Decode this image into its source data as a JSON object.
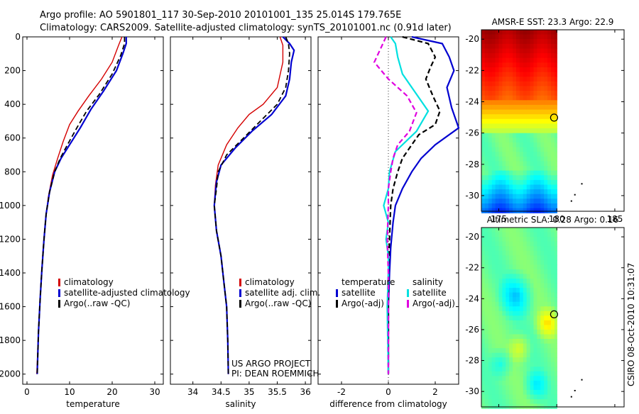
{
  "header": {
    "line1": "Argo profile: AO 5901801_117 30-Sep-2010 20101001_135 25.014S 179.765E",
    "line2": "Climatology: CARS2009. Satellite-adjusted climatology: synTS_20101001.nc (0.91d later)"
  },
  "side_stamp": "CSIRO 08-Oct-2010 10:31:07",
  "project": {
    "line1": "US ARGO PROJECT",
    "line2": "PI: DEAN ROEMMICH"
  },
  "colors": {
    "clim": "#d40000",
    "sat": "#0000d0",
    "argo": "#000000",
    "sat_diff_s": "#00e0e0",
    "argo_diff_s": "#e000e0"
  },
  "chart_data": [
    {
      "type": "line",
      "xlabel": "temperature",
      "xlim": [
        -1,
        32
      ],
      "xticks": [
        0,
        10,
        20,
        30
      ],
      "ylim": [
        0,
        2060
      ],
      "yticks": [
        0,
        200,
        400,
        600,
        800,
        1000,
        1200,
        1400,
        1600,
        1800,
        2000
      ],
      "legend": [
        "climatology",
        "satellite-adjusted climatology",
        "Argo(..raw -QC)"
      ],
      "series": [
        {
          "role": "climatology",
          "points": [
            [
              22.3,
              0
            ],
            [
              21.5,
              50
            ],
            [
              20,
              150
            ],
            [
              17.5,
              250
            ],
            [
              14.5,
              350
            ],
            [
              12,
              440
            ],
            [
              10,
              520
            ],
            [
              8.5,
              620
            ],
            [
              7.2,
              720
            ],
            [
              6,
              820
            ],
            [
              5,
              950
            ],
            [
              4.3,
              1100
            ],
            [
              3.8,
              1250
            ],
            [
              3.3,
              1450
            ],
            [
              3,
              1600
            ],
            [
              2.6,
              1800
            ],
            [
              2.3,
              2000
            ]
          ]
        },
        {
          "role": "satellite",
          "points": [
            [
              23.3,
              0
            ],
            [
              23.3,
              40
            ],
            [
              22.5,
              100
            ],
            [
              21,
              200
            ],
            [
              18,
              320
            ],
            [
              15,
              430
            ],
            [
              12.5,
              540
            ],
            [
              10,
              640
            ],
            [
              8,
              720
            ],
            [
              6.5,
              800
            ],
            [
              5.3,
              920
            ],
            [
              4.5,
              1050
            ],
            [
              4,
              1200
            ],
            [
              3.5,
              1380
            ],
            [
              3.1,
              1550
            ],
            [
              2.7,
              1750
            ],
            [
              2.4,
              2000
            ]
          ]
        },
        {
          "role": "argo",
          "points": [
            [
              22.9,
              0
            ],
            [
              22.9,
              40
            ],
            [
              22,
              110
            ],
            [
              20,
              220
            ],
            [
              17,
              340
            ],
            [
              14,
              440
            ],
            [
              11.7,
              540
            ],
            [
              9.5,
              640
            ],
            [
              7.8,
              720
            ],
            [
              6.5,
              800
            ],
            [
              5.3,
              920
            ],
            [
              4.5,
              1050
            ],
            [
              4,
              1200
            ],
            [
              3.5,
              1380
            ],
            [
              3.1,
              1550
            ],
            [
              2.7,
              1750
            ],
            [
              2.4,
              2000
            ]
          ]
        }
      ]
    },
    {
      "type": "line",
      "xlabel": "salinity",
      "xlim": [
        33.6,
        36.1
      ],
      "xticks": [
        34,
        34.5,
        35,
        35.5,
        36
      ],
      "ylim": [
        0,
        2060
      ],
      "yticks": [
        0,
        200,
        400,
        600,
        800,
        1000,
        1200,
        1400,
        1600,
        1800,
        2000
      ],
      "legend": [
        "climatology",
        "satellite adj. clim.",
        "Argo(..raw -QC)"
      ],
      "series": [
        {
          "role": "climatology",
          "points": [
            [
              35.55,
              0
            ],
            [
              35.6,
              50
            ],
            [
              35.6,
              150
            ],
            [
              35.5,
              300
            ],
            [
              35.25,
              400
            ],
            [
              35,
              460
            ],
            [
              34.8,
              540
            ],
            [
              34.6,
              640
            ],
            [
              34.45,
              760
            ],
            [
              34.4,
              880
            ],
            [
              34.38,
              1000
            ],
            [
              34.42,
              1150
            ],
            [
              34.5,
              1300
            ],
            [
              34.55,
              1450
            ],
            [
              34.6,
              1600
            ],
            [
              34.62,
              1800
            ],
            [
              34.63,
              2000
            ]
          ]
        },
        {
          "role": "satellite",
          "points": [
            [
              35.6,
              0
            ],
            [
              35.72,
              40
            ],
            [
              35.8,
              80
            ],
            [
              35.75,
              150
            ],
            [
              35.72,
              250
            ],
            [
              35.65,
              350
            ],
            [
              35.4,
              460
            ],
            [
              35.05,
              560
            ],
            [
              34.75,
              660
            ],
            [
              34.5,
              760
            ],
            [
              34.42,
              860
            ],
            [
              34.38,
              1000
            ],
            [
              34.42,
              1150
            ],
            [
              34.5,
              1300
            ],
            [
              34.55,
              1450
            ],
            [
              34.6,
              1600
            ],
            [
              34.62,
              1800
            ],
            [
              34.63,
              2000
            ]
          ]
        },
        {
          "role": "argo",
          "points": [
            [
              35.65,
              0
            ],
            [
              35.7,
              40
            ],
            [
              35.72,
              100
            ],
            [
              35.7,
              200
            ],
            [
              35.65,
              300
            ],
            [
              35.5,
              400
            ],
            [
              35.2,
              500
            ],
            [
              34.9,
              600
            ],
            [
              34.6,
              700
            ],
            [
              34.45,
              800
            ],
            [
              34.42,
              900
            ],
            [
              34.38,
              1000
            ],
            [
              34.42,
              1150
            ],
            [
              34.5,
              1300
            ],
            [
              34.55,
              1450
            ],
            [
              34.6,
              1600
            ],
            [
              34.62,
              1800
            ],
            [
              34.63,
              2000
            ]
          ]
        }
      ]
    },
    {
      "type": "line",
      "xlabel": "difference from climatology",
      "xlim": [
        -3,
        3
      ],
      "xticks": [
        -2,
        0,
        2
      ],
      "ylim": [
        0,
        2060
      ],
      "yticks": [
        0,
        200,
        400,
        600,
        800,
        1000,
        1200,
        1400,
        1600,
        1800,
        2000
      ],
      "legend_groups": [
        {
          "title": "temperature",
          "entries": [
            "satellite",
            "Argo(-adj)"
          ]
        },
        {
          "title": "salinity",
          "entries": [
            "satellite",
            "Argo(-adj)"
          ]
        }
      ],
      "series": [
        {
          "role": "satellite temperature",
          "points": [
            [
              1,
              0
            ],
            [
              2.3,
              40
            ],
            [
              2.6,
              120
            ],
            [
              2.8,
              200
            ],
            [
              2.5,
              300
            ],
            [
              2.7,
              420
            ],
            [
              3,
              540
            ],
            [
              2,
              640
            ],
            [
              1.4,
              720
            ],
            [
              1,
              800
            ],
            [
              0.6,
              900
            ],
            [
              0.3,
              1000
            ],
            [
              0.2,
              1100
            ],
            [
              0.1,
              1250
            ],
            [
              0.05,
              1400
            ],
            [
              0,
              1600
            ],
            [
              0,
              2000
            ]
          ]
        },
        {
          "role": "argo temperature",
          "points": [
            [
              0.6,
              0
            ],
            [
              1.7,
              40
            ],
            [
              2,
              120
            ],
            [
              1.8,
              180
            ],
            [
              1.6,
              250
            ],
            [
              1.9,
              350
            ],
            [
              2.2,
              440
            ],
            [
              2,
              520
            ],
            [
              1.3,
              580
            ],
            [
              1,
              640
            ],
            [
              0.6,
              720
            ],
            [
              0.4,
              800
            ],
            [
              0.2,
              900
            ],
            [
              0.1,
              1000
            ],
            [
              0.05,
              1200
            ],
            [
              0,
              1400
            ],
            [
              0,
              2000
            ]
          ]
        },
        {
          "role": "satellite salinity",
          "points": [
            [
              0.1,
              0
            ],
            [
              0.3,
              40
            ],
            [
              0.4,
              120
            ],
            [
              0.6,
              220
            ],
            [
              1.2,
              340
            ],
            [
              1.7,
              440
            ],
            [
              1.2,
              560
            ],
            [
              0.3,
              680
            ],
            [
              0.05,
              800
            ],
            [
              0,
              900
            ],
            [
              -0.2,
              1000
            ],
            [
              0,
              1100
            ],
            [
              -0.1,
              1200
            ],
            [
              0,
              1300
            ],
            [
              0,
              1400
            ],
            [
              -0.05,
              1600
            ],
            [
              0,
              2000
            ]
          ]
        },
        {
          "role": "argo salinity",
          "points": [
            [
              -0.1,
              0
            ],
            [
              -0.3,
              60
            ],
            [
              -0.6,
              150
            ],
            [
              0,
              250
            ],
            [
              0.8,
              350
            ],
            [
              1.2,
              450
            ],
            [
              0.9,
              560
            ],
            [
              0.4,
              640
            ],
            [
              0.2,
              720
            ],
            [
              0.1,
              800
            ],
            [
              0,
              900
            ],
            [
              0,
              1000
            ],
            [
              -0.05,
              1200
            ],
            [
              0,
              1400
            ],
            [
              0,
              2000
            ]
          ]
        }
      ]
    },
    {
      "type": "heatmap",
      "title": "AMSR-E SST: 23.3  Argo: 22.9",
      "xticks": [
        175,
        180,
        185
      ],
      "xlim": [
        173.5,
        185.8
      ],
      "yticks": [
        -20,
        -22,
        -24,
        -26,
        -28,
        -30
      ],
      "ylim": [
        -31,
        -19.4
      ],
      "marker": [
        179.765,
        -25.014
      ],
      "field": "sst"
    },
    {
      "type": "heatmap",
      "title": "Altimetric SLA: 0.28  Argo: 0.16",
      "xticks": [
        175,
        180,
        185
      ],
      "xlim": [
        173.5,
        185.8
      ],
      "yticks": [
        -20,
        -22,
        -24,
        -26,
        -28,
        -30
      ],
      "ylim": [
        -31,
        -19.4
      ],
      "marker": [
        179.765,
        -25.014
      ],
      "field": "sla"
    }
  ]
}
